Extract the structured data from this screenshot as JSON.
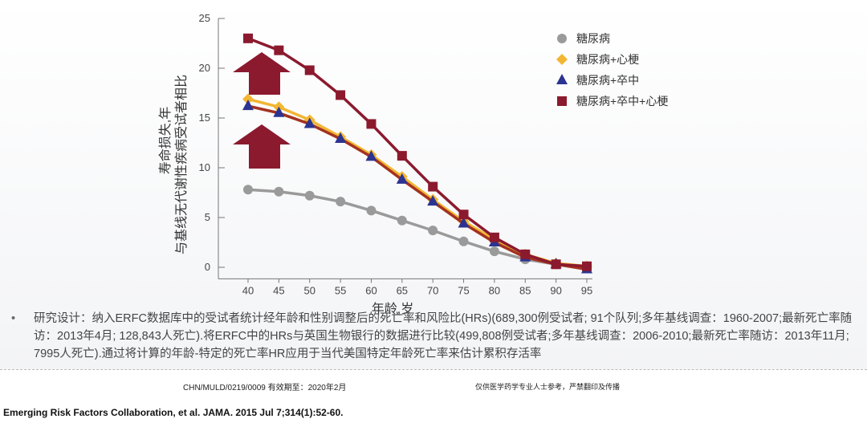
{
  "chart_data": {
    "type": "line",
    "xlabel": "年龄,岁",
    "ylabel_lines": [
      "寿命损失,年",
      "与基线无代谢性疾病受试者相比"
    ],
    "x": [
      40,
      45,
      50,
      55,
      60,
      65,
      70,
      75,
      80,
      85,
      90,
      95
    ],
    "xticks": [
      "40",
      "45",
      "50",
      "55",
      "60",
      "65",
      "70",
      "75",
      "80",
      "85",
      "90",
      "95"
    ],
    "yticks": [
      "0",
      "5",
      "10",
      "15",
      "20",
      "25"
    ],
    "ylim": [
      -1,
      25
    ],
    "legend_position": "top-right",
    "series": [
      {
        "name": "糖尿病",
        "marker": "circle",
        "color": "#9a9a9a",
        "line_color": "#9a9a9a",
        "values": [
          7.8,
          7.6,
          7.2,
          6.6,
          5.7,
          4.7,
          3.7,
          2.6,
          1.6,
          0.8,
          0.3,
          0.1
        ]
      },
      {
        "name": "糖尿病+心梗",
        "marker": "diamond",
        "color": "#f2b632",
        "line_color": "#f2b632",
        "values": [
          16.9,
          16.1,
          14.8,
          13.1,
          11.3,
          9.1,
          6.8,
          4.6,
          2.8,
          1.3,
          0.4,
          0.1
        ]
      },
      {
        "name": "糖尿病+卒中",
        "marker": "triangle",
        "color": "#2b3490",
        "line_color": "#a3321f",
        "values": [
          16.2,
          15.5,
          14.4,
          12.9,
          11.1,
          8.8,
          6.6,
          4.4,
          2.5,
          1.0,
          0.3,
          -0.2
        ]
      },
      {
        "name": "糖尿病+卒中+心梗",
        "marker": "square",
        "color": "#8b1a2e",
        "line_color": "#8b1a2e",
        "values": [
          23.0,
          21.8,
          19.8,
          17.3,
          14.4,
          11.2,
          8.1,
          5.3,
          3.0,
          1.3,
          0.3,
          0.1
        ]
      }
    ],
    "arrow_color": "#8b1a2e"
  },
  "note": {
    "bullet": "•",
    "text": "研究设计：纳入ERFC数据库中的受试者统计经年龄和性别调整后的死亡率和风险比(HRs)(689,300例受试者; 91个队列;多年基线调查：1960-2007;最新死亡率随访：2013年4月; 128,843人死亡).将ERFC中的HRs与英国生物银行的数据进行比较(499,808例受试者;多年基线调查：2006-2010;最新死亡率随访：2013年11月; 7995人死亡).通过将计算的年龄-特定的死亡率HR应用于当代美国特定年龄死亡率来估计累积存活率"
  },
  "footer": {
    "code": "CHN/MULD/0219/0009 有效期至：2020年2月",
    "disclaimer": "仅供医学药学专业人士参考，严禁翻印及传播",
    "reference": "Emerging Risk Factors Collaboration, et al. JAMA. 2015 Jul 7;314(1):52-60."
  }
}
